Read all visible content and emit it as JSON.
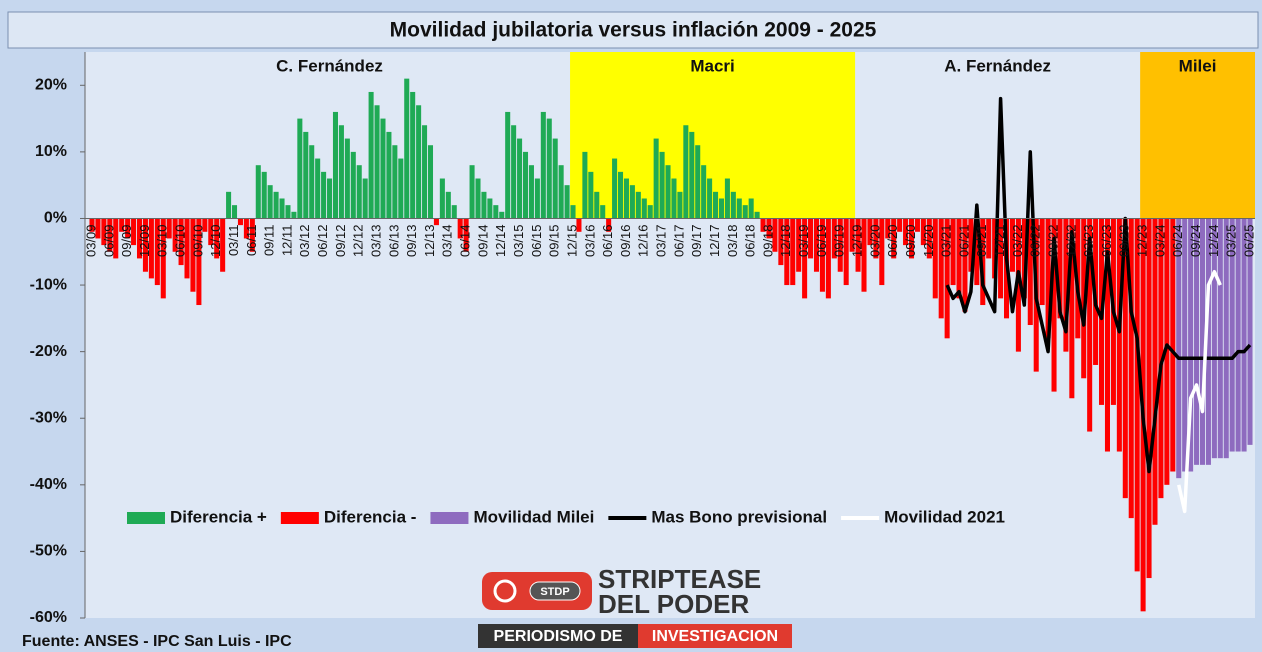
{
  "chart_data": {
    "type": "bar",
    "title": "Movilidad jubilatoria versus inflación 2009 - 2025",
    "source": "Fuente: ANSES  - IPC San Luis - IPC",
    "logo": {
      "badge": "STDP",
      "line1": "STRIPTEASE",
      "line2": "DEL PODER",
      "banner1": "PERIODISMO DE",
      "banner2": "INVESTIGACION"
    },
    "periods": [
      {
        "label": "C. Fernández",
        "start": "03/09"
      },
      {
        "label": "Macri",
        "start": "12/15",
        "color": "#ffff00"
      },
      {
        "label": "A. Fernández",
        "start": "12/19"
      },
      {
        "label": "Milei",
        "start": "12/23",
        "color": "#ffc000"
      }
    ],
    "ylim": [
      -60,
      25
    ],
    "yticks": [
      {
        "value": -60,
        "label": "-60%"
      },
      {
        "value": -50,
        "label": "-50%"
      },
      {
        "value": -40,
        "label": "-40%"
      },
      {
        "value": -30,
        "label": "-30%"
      },
      {
        "value": -20,
        "label": "-20%"
      },
      {
        "value": -10,
        "label": "-10%"
      },
      {
        "value": 0,
        "label": "0%"
      },
      {
        "value": 10,
        "label": "10%"
      },
      {
        "value": 20,
        "label": "20%"
      }
    ],
    "legend": "bottom",
    "categories": [
      "03/09",
      null,
      null,
      "06/09",
      null,
      null,
      "09/09",
      null,
      null,
      "12/09",
      null,
      null,
      "03/10",
      null,
      null,
      "06/10",
      null,
      null,
      "09/10",
      null,
      null,
      "12/10",
      null,
      null,
      "03/11",
      null,
      null,
      "06/11",
      null,
      null,
      "09/11",
      null,
      null,
      "12/11",
      null,
      null,
      "03/12",
      null,
      null,
      "06/12",
      null,
      null,
      "09/12",
      null,
      null,
      "12/12",
      null,
      null,
      "03/13",
      null,
      null,
      "06/13",
      null,
      null,
      "09/13",
      null,
      null,
      "12/13",
      null,
      null,
      "03/14",
      null,
      null,
      "06/14",
      null,
      null,
      "09/14",
      null,
      null,
      "12/14",
      null,
      null,
      "03/15",
      null,
      null,
      "06/15",
      null,
      null,
      "09/15",
      null,
      null,
      "12/15",
      null,
      null,
      "03/16",
      null,
      null,
      "06/16",
      null,
      null,
      "09/16",
      null,
      null,
      "12/16",
      null,
      null,
      "03/17",
      null,
      null,
      "06/17",
      null,
      null,
      "09/17",
      null,
      null,
      "12/17",
      null,
      null,
      "03/18",
      null,
      null,
      "06/18",
      null,
      null,
      "09/18",
      null,
      null,
      "12/18",
      null,
      null,
      "03/19",
      null,
      null,
      "06/19",
      null,
      null,
      "09/19",
      null,
      null,
      "12/19",
      null,
      null,
      "03/20",
      null,
      null,
      "06/20",
      null,
      null,
      "09/20",
      null,
      null,
      "12/20",
      null,
      null,
      "03/21",
      null,
      null,
      "06/21",
      null,
      null,
      "09/21",
      null,
      null,
      "12/21",
      null,
      null,
      "03/22",
      null,
      null,
      "06/22",
      null,
      null,
      "09/22",
      null,
      null,
      "12/22",
      null,
      null,
      "03/23",
      null,
      null,
      "06/23",
      null,
      null,
      "09/23",
      null,
      null,
      "12/23",
      null,
      null,
      "03/24",
      null,
      null,
      "06/24",
      null,
      null,
      "09/24",
      null,
      null,
      "12/24",
      null,
      null,
      "03/25",
      null,
      null,
      "06/25"
    ],
    "series": [
      {
        "name": "Diferencia +",
        "type": "bar",
        "color": "#1faa55",
        "values": [
          null,
          null,
          null,
          null,
          null,
          null,
          null,
          null,
          null,
          null,
          null,
          null,
          null,
          null,
          null,
          null,
          null,
          null,
          null,
          null,
          null,
          null,
          null,
          4,
          2,
          null,
          null,
          null,
          8,
          7,
          5,
          4,
          3,
          2,
          1,
          15,
          13,
          11,
          9,
          7,
          6,
          16,
          14,
          12,
          10,
          8,
          6,
          19,
          17,
          15,
          13,
          11,
          9,
          21,
          19,
          17,
          14,
          11,
          null,
          6,
          4,
          2,
          null,
          null,
          8,
          6,
          4,
          3,
          2,
          1,
          16,
          14,
          12,
          10,
          8,
          6,
          16,
          15,
          12,
          8,
          5,
          2,
          null,
          10,
          7,
          4,
          2,
          null,
          9,
          7,
          6,
          5,
          4,
          3,
          2,
          12,
          10,
          8,
          6,
          4,
          14,
          13,
          11,
          8,
          6,
          4,
          3,
          6,
          4,
          3,
          2,
          3,
          1,
          null,
          null,
          null,
          null,
          null,
          null,
          null,
          null,
          null,
          null,
          null,
          null,
          null,
          null,
          null,
          null,
          null,
          null,
          null,
          null,
          null,
          null,
          null,
          null,
          null,
          null,
          null,
          null,
          null,
          null,
          null,
          null,
          null,
          null,
          null,
          null,
          null,
          null,
          null,
          null,
          null,
          null,
          null,
          null,
          null,
          null,
          null,
          null,
          null,
          null,
          null,
          null,
          null,
          null,
          null,
          null,
          null,
          null,
          null,
          null,
          null,
          null,
          null,
          null,
          null,
          null,
          null,
          null,
          null,
          null,
          null,
          null,
          null,
          null,
          null,
          null,
          null,
          null,
          null,
          null,
          null,
          null,
          null
        ]
      },
      {
        "name": "Diferencia -",
        "type": "bar",
        "color": "#ff0000",
        "values": [
          -2,
          -3,
          -4,
          -5,
          -6,
          -2,
          -3,
          -4,
          -6,
          -8,
          -9,
          -10,
          -12,
          -3,
          -5,
          -7,
          -9,
          -11,
          -13,
          -2,
          -4,
          -6,
          -8,
          null,
          null,
          -1,
          -3,
          -5,
          null,
          null,
          null,
          null,
          null,
          null,
          null,
          null,
          null,
          null,
          null,
          null,
          null,
          null,
          null,
          null,
          null,
          null,
          null,
          null,
          null,
          null,
          null,
          null,
          null,
          null,
          null,
          null,
          null,
          null,
          -1,
          null,
          null,
          null,
          -3,
          -5,
          null,
          null,
          null,
          null,
          null,
          null,
          null,
          null,
          null,
          null,
          null,
          null,
          null,
          null,
          null,
          null,
          null,
          null,
          -2,
          null,
          null,
          null,
          null,
          -2,
          null,
          null,
          null,
          null,
          null,
          null,
          null,
          null,
          null,
          null,
          null,
          null,
          null,
          null,
          null,
          null,
          null,
          null,
          null,
          null,
          null,
          null,
          null,
          null,
          null,
          -2,
          -3,
          -5,
          -7,
          -10,
          -10,
          -8,
          -12,
          -6,
          -8,
          -11,
          -12,
          -6,
          -8,
          -10,
          -5,
          -8,
          -11,
          -4,
          -6,
          -10,
          -3,
          -6,
          -2,
          -4,
          -6,
          -2,
          -4,
          -6,
          -12,
          -15,
          -18,
          -10,
          -12,
          -14,
          -8,
          -10,
          -13,
          -6,
          -9,
          -12,
          -15,
          -8,
          -20,
          -12,
          -16,
          -23,
          -13,
          -18,
          -26,
          -15,
          -20,
          -27,
          -18,
          -24,
          -32,
          -22,
          -28,
          -35,
          -28,
          -35,
          -42,
          -45,
          -53,
          -59,
          -54,
          -46,
          -42,
          -40,
          -38,
          null,
          null,
          null,
          null,
          null,
          null,
          null,
          null,
          null,
          null,
          null,
          null,
          null
        ]
      },
      {
        "name": "Movilidad Milei",
        "type": "bar",
        "color": "#8e6bbf",
        "values": [
          null,
          null,
          null,
          null,
          null,
          null,
          null,
          null,
          null,
          null,
          null,
          null,
          null,
          null,
          null,
          null,
          null,
          null,
          null,
          null,
          null,
          null,
          null,
          null,
          null,
          null,
          null,
          null,
          null,
          null,
          null,
          null,
          null,
          null,
          null,
          null,
          null,
          null,
          null,
          null,
          null,
          null,
          null,
          null,
          null,
          null,
          null,
          null,
          null,
          null,
          null,
          null,
          null,
          null,
          null,
          null,
          null,
          null,
          null,
          null,
          null,
          null,
          null,
          null,
          null,
          null,
          null,
          null,
          null,
          null,
          null,
          null,
          null,
          null,
          null,
          null,
          null,
          null,
          null,
          null,
          null,
          null,
          null,
          null,
          null,
          null,
          null,
          null,
          null,
          null,
          null,
          null,
          null,
          null,
          null,
          null,
          null,
          null,
          null,
          null,
          null,
          null,
          null,
          null,
          null,
          null,
          null,
          null,
          null,
          null,
          null,
          null,
          null,
          null,
          null,
          null,
          null,
          null,
          null,
          null,
          null,
          null,
          null,
          null,
          null,
          null,
          null,
          null,
          null,
          null,
          null,
          null,
          null,
          null,
          null,
          null,
          null,
          null,
          null,
          null,
          null,
          null,
          null,
          null,
          null,
          null,
          null,
          null,
          null,
          null,
          null,
          null,
          null,
          null,
          null,
          null,
          null,
          null,
          null,
          null,
          null,
          null,
          null,
          null,
          null,
          null,
          null,
          null,
          null,
          null,
          null,
          null,
          null,
          null,
          null,
          null,
          null,
          null,
          null,
          null,
          null,
          null,
          null,
          -39,
          -38,
          -38,
          -37,
          -37,
          -37,
          -36,
          -36,
          -36,
          -35,
          -35,
          -35,
          -34
        ]
      },
      {
        "name": "Mas Bono previsional",
        "type": "line",
        "color": "#000000",
        "values": [
          null,
          null,
          null,
          null,
          null,
          null,
          null,
          null,
          null,
          null,
          null,
          null,
          null,
          null,
          null,
          null,
          null,
          null,
          null,
          null,
          null,
          null,
          null,
          null,
          null,
          null,
          null,
          null,
          null,
          null,
          null,
          null,
          null,
          null,
          null,
          null,
          null,
          null,
          null,
          null,
          null,
          null,
          null,
          null,
          null,
          null,
          null,
          null,
          null,
          null,
          null,
          null,
          null,
          null,
          null,
          null,
          null,
          null,
          null,
          null,
          null,
          null,
          null,
          null,
          null,
          null,
          null,
          null,
          null,
          null,
          null,
          null,
          null,
          null,
          null,
          null,
          null,
          null,
          null,
          null,
          null,
          null,
          null,
          null,
          null,
          null,
          null,
          null,
          null,
          null,
          null,
          null,
          null,
          null,
          null,
          null,
          null,
          null,
          null,
          null,
          null,
          null,
          null,
          null,
          null,
          null,
          null,
          null,
          null,
          null,
          null,
          null,
          null,
          null,
          null,
          null,
          null,
          null,
          null,
          null,
          null,
          null,
          null,
          null,
          null,
          null,
          null,
          null,
          null,
          null,
          null,
          null,
          null,
          null,
          null,
          null,
          null,
          null,
          null,
          null,
          null,
          null,
          null,
          null,
          -10,
          -12,
          -11,
          -14,
          -11,
          2,
          -10,
          -12,
          -14,
          18,
          -6,
          -14,
          -8,
          -13,
          10,
          -12,
          -16,
          -20,
          -3,
          -14,
          -17,
          -2,
          -11,
          -16,
          -3,
          -13,
          -15,
          -5,
          -14,
          -17,
          0,
          -14,
          -18,
          -30,
          -38,
          -30,
          -22,
          -19,
          -20,
          -21,
          -21,
          -21,
          -21,
          -21,
          -21,
          -21,
          -21,
          -21,
          -21,
          -20,
          -20,
          -19
        ]
      },
      {
        "name": "Movilidad 2021",
        "type": "line",
        "color": "#ffffff",
        "values": [
          null,
          null,
          null,
          null,
          null,
          null,
          null,
          null,
          null,
          null,
          null,
          null,
          null,
          null,
          null,
          null,
          null,
          null,
          null,
          null,
          null,
          null,
          null,
          null,
          null,
          null,
          null,
          null,
          null,
          null,
          null,
          null,
          null,
          null,
          null,
          null,
          null,
          null,
          null,
          null,
          null,
          null,
          null,
          null,
          null,
          null,
          null,
          null,
          null,
          null,
          null,
          null,
          null,
          null,
          null,
          null,
          null,
          null,
          null,
          null,
          null,
          null,
          null,
          null,
          null,
          null,
          null,
          null,
          null,
          null,
          null,
          null,
          null,
          null,
          null,
          null,
          null,
          null,
          null,
          null,
          null,
          null,
          null,
          null,
          null,
          null,
          null,
          null,
          null,
          null,
          null,
          null,
          null,
          null,
          null,
          null,
          null,
          null,
          null,
          null,
          null,
          null,
          null,
          null,
          null,
          null,
          null,
          null,
          null,
          null,
          null,
          null,
          null,
          null,
          null,
          null,
          null,
          null,
          null,
          null,
          null,
          null,
          null,
          null,
          null,
          null,
          null,
          null,
          null,
          null,
          null,
          null,
          null,
          null,
          null,
          null,
          null,
          null,
          null,
          null,
          null,
          null,
          null,
          null,
          null,
          null,
          null,
          null,
          null,
          null,
          null,
          null,
          null,
          null,
          null,
          null,
          null,
          null,
          null,
          null,
          null,
          null,
          null,
          null,
          null,
          null,
          null,
          null,
          null,
          null,
          null,
          null,
          null,
          null,
          null,
          null,
          null,
          null,
          null,
          null,
          null,
          null,
          null,
          -40,
          -44,
          -27,
          -25,
          -29,
          -10,
          -8,
          -10,
          null,
          null,
          null,
          null,
          null
        ]
      }
    ]
  }
}
